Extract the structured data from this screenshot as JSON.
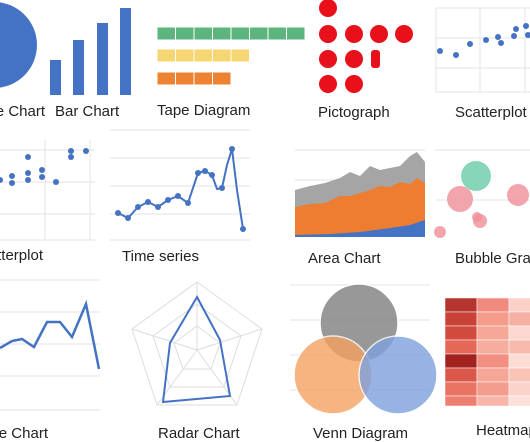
{
  "tiles": [
    {
      "label": "Pie Chart"
    },
    {
      "label": "Bar Chart"
    },
    {
      "label": "Tape Diagram"
    },
    {
      "label": "Pictograph"
    },
    {
      "label": "Scatterplot"
    },
    {
      "label": "Scatterplot"
    },
    {
      "label": "Time series"
    },
    {
      "label": "Area Chart"
    },
    {
      "label": "Bubble Graph"
    },
    {
      "label": "Line Chart"
    },
    {
      "label": "Radar Chart"
    },
    {
      "label": "Venn Diagram"
    },
    {
      "label": "Heatmap"
    }
  ]
}
